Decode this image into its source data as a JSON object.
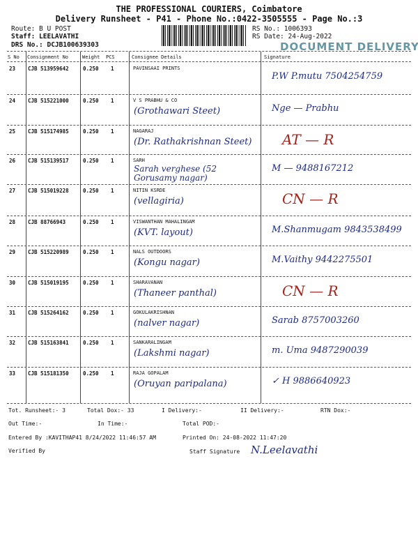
{
  "header": {
    "company": "THE PROFESSIONAL COURIERS, Coimbatore",
    "subtitle": "Delivery Runsheet - P41 - Phone No.:0422-3505555 - Page No.:3",
    "route": "Route: B U POST",
    "staff": "Staff: LEELAVATHI",
    "drs_no": "DRS No.: DCJB100639303",
    "rs_no": "RS No.: 1006393",
    "rs_date": "RS Date: 24-Aug-2022",
    "stamp": "DOCUMENT DELIVERY"
  },
  "table": {
    "columns": [
      "S No",
      "Consignment No",
      "Weight",
      "PCS",
      "Consignee Details",
      "Signature"
    ],
    "rows": [
      {
        "sno": "23",
        "cno": "CJB 513959642",
        "weight": "0.250",
        "pcs": "1",
        "name": "PAVINSAAI PRINTS",
        "note": "",
        "sign": "P.W  P.mutu 7504254759",
        "red": false
      },
      {
        "sno": "24",
        "cno": "CJB 515221000",
        "weight": "0.250",
        "pcs": "1",
        "name": "V S PRABHU & CO",
        "note": "(Grothawari Steet)",
        "sign": "Nge — Prabhu",
        "red": false
      },
      {
        "sno": "25",
        "cno": "CJB 515174985",
        "weight": "0.250",
        "pcs": "1",
        "name": "NAGARAJ",
        "note": "(Dr. Rathakrishnan Steet)",
        "sign": "AT — R",
        "red": true
      },
      {
        "sno": "26",
        "cno": "CJB 515139517",
        "weight": "0.250",
        "pcs": "1",
        "name": "SARH",
        "note": "Sarah verghese (52 Gorusamy nagar)",
        "sign": "M — 9488167212",
        "red": false
      },
      {
        "sno": "27",
        "cno": "CJB 515019228",
        "weight": "0.250",
        "pcs": "1",
        "name": "NITIN KSRDE",
        "note": "(vellagiria)",
        "sign": "CN — R",
        "red": true
      },
      {
        "sno": "28",
        "cno": "CJB 88766943",
        "weight": "0.250",
        "pcs": "1",
        "name": "VISWANTHAN MAHALINGAM",
        "note": "(KVT. layout)",
        "sign": "M.Shanmugam 9843538499",
        "red": false
      },
      {
        "sno": "29",
        "cno": "CJB 515220989",
        "weight": "0.250",
        "pcs": "1",
        "name": "NALS OUTDOORS",
        "note": "(Kongu nagar)",
        "sign": "M.Vaithy 9442275501",
        "red": false
      },
      {
        "sno": "30",
        "cno": "CJB 515019195",
        "weight": "0.250",
        "pcs": "1",
        "name": "SHARAVANAN",
        "note": "(Thaneer panthal)",
        "sign": "CN — R",
        "red": true
      },
      {
        "sno": "31",
        "cno": "CJB 515264162",
        "weight": "0.250",
        "pcs": "1",
        "name": "GOKULAKRISHNAN",
        "note": "(nalver nagar)",
        "sign": "Sarab 8757003260",
        "red": false
      },
      {
        "sno": "32",
        "cno": "CJB 515163841",
        "weight": "0.250",
        "pcs": "1",
        "name": "SANKARALINGAM",
        "note": "(Lakshmi nagar)",
        "sign": "m. Uma 9487290039",
        "red": false
      },
      {
        "sno": "33",
        "cno": "CJB 515181350",
        "weight": "0.250",
        "pcs": "1",
        "name": "RAJA  GOPALAM",
        "note": "(Oruyan paripalana)",
        "sign": "✓ H 9886640923",
        "red": false
      }
    ]
  },
  "footer": {
    "tot_runsheet": "Tot. Runsheet:- 3",
    "total_dox": "Total Dox:-   33",
    "i_delivery": "I Delivery:-",
    "ii_delivery": "II Delivery:-",
    "rtn_dox": "RTN Dox:-",
    "out_time": "Out Time:-",
    "in_time": "In Time:-",
    "total_pod": "Total POD:-",
    "entered_by": "Entered By :KAVITHAP41 8/24/2022 11:46:57 AM",
    "printed_on": "Printed On: 24-08-2022 11:47:20",
    "verified_by": "Verified By",
    "staff_signature": "Staff Signature",
    "staff_sign_hand": "N.Leelavathi"
  }
}
